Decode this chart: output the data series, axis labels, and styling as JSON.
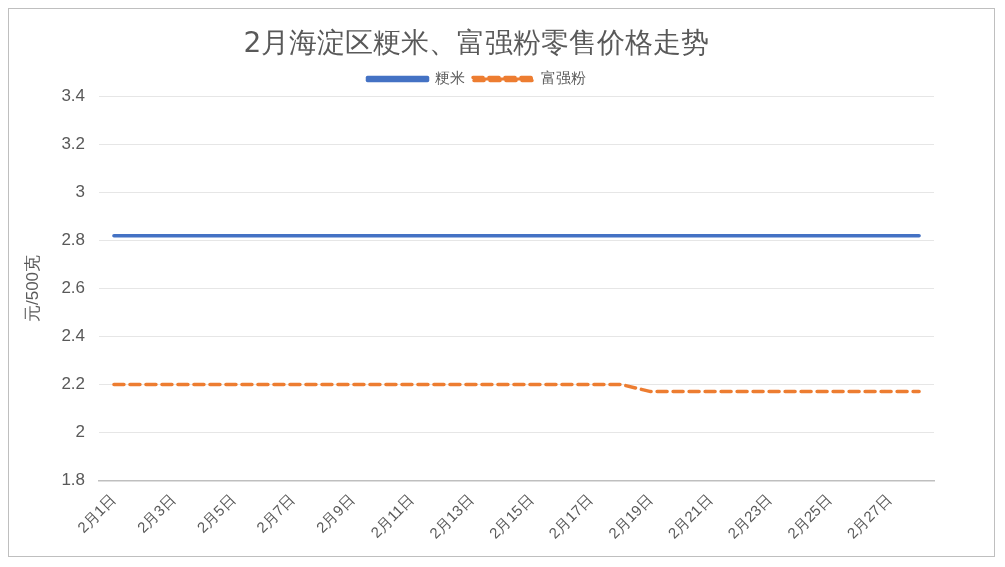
{
  "chart_data": {
    "type": "line",
    "title": "2月海淀区粳米、富强粉零售价格走势",
    "ylabel": "元/500克",
    "categories": [
      "2月1日",
      null,
      "2月3日",
      null,
      "2月5日",
      null,
      "2月7日",
      null,
      "2月9日",
      null,
      "2月11日",
      null,
      "2月13日",
      null,
      "2月15日",
      null,
      "2月17日",
      null,
      "2月19日",
      null,
      "2月21日",
      null,
      "2月23日",
      null,
      "2月25日",
      null,
      "2月27日",
      null
    ],
    "series": [
      {
        "name": "粳米",
        "color": "#4472c4",
        "line_style": "solid",
        "values": [
          2.82,
          2.82,
          2.82,
          2.82,
          2.82,
          2.82,
          2.82,
          2.82,
          2.82,
          2.82,
          2.82,
          2.82,
          2.82,
          2.82,
          2.82,
          2.82,
          2.82,
          2.82,
          2.82,
          2.82,
          2.82,
          2.82,
          2.82,
          2.82,
          2.82,
          2.82,
          2.82,
          2.82
        ]
      },
      {
        "name": "富强粉",
        "color": "#ed7d31",
        "line_style": "dashed",
        "values": [
          2.2,
          2.2,
          2.2,
          2.2,
          2.2,
          2.2,
          2.2,
          2.2,
          2.2,
          2.2,
          2.2,
          2.2,
          2.2,
          2.2,
          2.2,
          2.2,
          2.2,
          2.2,
          2.17,
          2.17,
          2.17,
          2.17,
          2.17,
          2.17,
          2.17,
          2.17,
          2.17,
          2.17
        ]
      }
    ],
    "ylim": [
      1.8,
      3.4
    ],
    "yticks": [
      1.8,
      2,
      2.2,
      2.4,
      2.6,
      2.8,
      3,
      3.2,
      3.4
    ],
    "grid": "y",
    "legend": "top",
    "marker": "none"
  }
}
